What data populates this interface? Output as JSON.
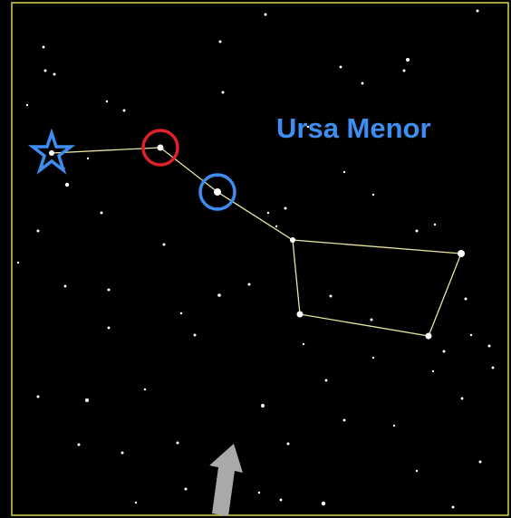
{
  "label": "Ursa Menor"
}
